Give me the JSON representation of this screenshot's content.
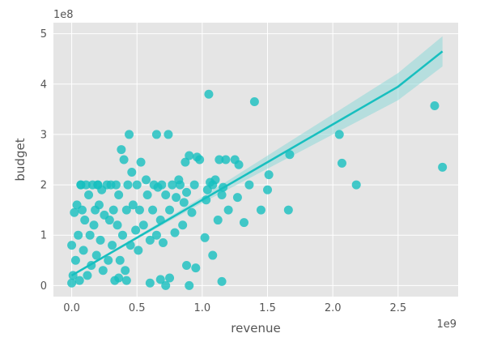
{
  "chart_data": {
    "type": "scatter",
    "title": "",
    "xlabel": "revenue",
    "ylabel": "budget",
    "x_offset_label": "1e9",
    "y_offset_label": "1e8",
    "x_scale": 1000000000,
    "y_scale": 100000000,
    "xlim": [
      -0.14,
      2.96
    ],
    "ylim": [
      -0.22,
      5.22
    ],
    "x_ticks": [
      0.0,
      0.5,
      1.0,
      1.5,
      2.0,
      2.5
    ],
    "x_tick_labels": [
      "0.0",
      "0.5",
      "1.0",
      "1.5",
      "2.0",
      "2.5"
    ],
    "y_ticks": [
      0,
      1,
      2,
      3,
      4,
      5
    ],
    "y_tick_labels": [
      "0",
      "1",
      "2",
      "3",
      "4",
      "5"
    ],
    "grid": true,
    "legend": "none",
    "colors": {
      "points": "#17bfbf",
      "regression_line": "#17bfbf",
      "confidence_band": "#8fd9d9",
      "plot_background": "#e5e5e5",
      "grid": "#ffffff",
      "text": "#555555"
    },
    "series": [
      {
        "kind": "scatter",
        "points": [
          [
            1.05,
            3.8
          ],
          [
            1.4,
            3.65
          ],
          [
            2.78,
            3.57
          ],
          [
            2.84,
            2.35
          ],
          [
            2.05,
            3.0
          ],
          [
            2.07,
            2.43
          ],
          [
            2.18,
            2.0
          ],
          [
            1.67,
            2.6
          ],
          [
            1.66,
            1.5
          ],
          [
            1.51,
            2.2
          ],
          [
            1.5,
            1.9
          ],
          [
            1.45,
            1.5
          ],
          [
            1.36,
            2.0
          ],
          [
            1.32,
            1.25
          ],
          [
            1.28,
            2.4
          ],
          [
            1.27,
            1.75
          ],
          [
            1.25,
            2.5
          ],
          [
            1.2,
            1.5
          ],
          [
            1.18,
            2.5
          ],
          [
            1.16,
            1.95
          ],
          [
            1.15,
            1.8
          ],
          [
            1.12,
            1.3
          ],
          [
            1.13,
            2.5
          ],
          [
            1.1,
            2.1
          ],
          [
            1.08,
            2.0
          ],
          [
            1.06,
            2.05
          ],
          [
            1.04,
            1.9
          ],
          [
            1.03,
            1.7
          ],
          [
            1.02,
            0.95
          ],
          [
            0.98,
            2.5
          ],
          [
            0.96,
            2.55
          ],
          [
            0.94,
            2.0
          ],
          [
            0.92,
            1.45
          ],
          [
            0.9,
            2.58
          ],
          [
            0.88,
            1.85
          ],
          [
            0.87,
            2.45
          ],
          [
            0.86,
            1.65
          ],
          [
            0.85,
            1.2
          ],
          [
            0.83,
            2.0
          ],
          [
            0.82,
            2.1
          ],
          [
            0.8,
            1.75
          ],
          [
            0.79,
            1.05
          ],
          [
            0.77,
            2.0
          ],
          [
            0.75,
            1.5
          ],
          [
            0.74,
            3.0
          ],
          [
            0.72,
            1.8
          ],
          [
            0.7,
            0.85
          ],
          [
            0.69,
            2.0
          ],
          [
            0.68,
            1.3
          ],
          [
            0.66,
            1.95
          ],
          [
            0.65,
            1.0
          ],
          [
            0.63,
            2.0
          ],
          [
            0.62,
            1.5
          ],
          [
            0.6,
            0.9
          ],
          [
            0.58,
            1.8
          ],
          [
            0.57,
            2.1
          ],
          [
            0.55,
            1.2
          ],
          [
            0.53,
            2.45
          ],
          [
            0.52,
            1.5
          ],
          [
            0.51,
            0.7
          ],
          [
            0.5,
            2.0
          ],
          [
            0.49,
            1.1
          ],
          [
            0.47,
            1.6
          ],
          [
            0.46,
            2.25
          ],
          [
            0.45,
            0.8
          ],
          [
            0.44,
            3.0
          ],
          [
            0.43,
            2.0
          ],
          [
            0.42,
            1.5
          ],
          [
            0.41,
            0.3
          ],
          [
            0.4,
            2.5
          ],
          [
            0.39,
            1.0
          ],
          [
            0.38,
            2.7
          ],
          [
            0.37,
            0.5
          ],
          [
            0.36,
            1.8
          ],
          [
            0.35,
            1.2
          ],
          [
            0.34,
            2.0
          ],
          [
            0.33,
            0.1
          ],
          [
            0.32,
            1.5
          ],
          [
            0.31,
            0.8
          ],
          [
            0.3,
            2.0
          ],
          [
            0.29,
            1.3
          ],
          [
            0.28,
            0.5
          ],
          [
            0.27,
            2.0
          ],
          [
            0.25,
            1.4
          ],
          [
            0.24,
            0.3
          ],
          [
            0.23,
            1.9
          ],
          [
            0.22,
            0.9
          ],
          [
            0.21,
            1.6
          ],
          [
            0.2,
            2.0
          ],
          [
            0.19,
            0.6
          ],
          [
            0.18,
            1.5
          ],
          [
            0.17,
            1.2
          ],
          [
            0.16,
            2.0
          ],
          [
            0.15,
            0.4
          ],
          [
            0.14,
            1.0
          ],
          [
            0.13,
            1.8
          ],
          [
            0.12,
            0.2
          ],
          [
            0.11,
            2.0
          ],
          [
            0.1,
            1.3
          ],
          [
            0.09,
            0.7
          ],
          [
            0.08,
            1.5
          ],
          [
            0.07,
            2.0
          ],
          [
            0.06,
            0.1
          ],
          [
            0.05,
            1.0
          ],
          [
            0.04,
            1.6
          ],
          [
            0.03,
            0.5
          ],
          [
            0.02,
            1.45
          ],
          [
            0.01,
            0.2
          ],
          [
            0.0,
            0.8
          ],
          [
            0.0,
            0.05
          ],
          [
            0.07,
            2.0
          ],
          [
            0.2,
            2.0
          ],
          [
            0.65,
            3.0
          ],
          [
            0.36,
            0.15
          ],
          [
            0.42,
            0.1
          ],
          [
            0.6,
            0.05
          ],
          [
            0.68,
            0.12
          ],
          [
            0.72,
            0.0
          ],
          [
            0.75,
            0.15
          ],
          [
            0.9,
            0.0
          ],
          [
            1.15,
            0.08
          ],
          [
            1.08,
            0.6
          ],
          [
            0.95,
            0.35
          ],
          [
            0.88,
            0.4
          ]
        ]
      },
      {
        "kind": "regression_line",
        "name": "",
        "x": [
          0.0,
          0.5,
          1.0,
          1.5,
          2.0,
          2.5,
          2.84
        ],
        "y": [
          0.2,
          0.95,
          1.7,
          2.45,
          3.2,
          3.95,
          4.65
        ]
      },
      {
        "kind": "confidence_band",
        "x": [
          0.0,
          0.5,
          1.0,
          1.5,
          2.0,
          2.5,
          2.84
        ],
        "upper": [
          0.22,
          0.98,
          1.76,
          2.58,
          3.4,
          4.22,
          4.95
        ],
        "lower": [
          0.18,
          0.92,
          1.64,
          2.32,
          3.0,
          3.68,
          4.35
        ]
      }
    ]
  }
}
